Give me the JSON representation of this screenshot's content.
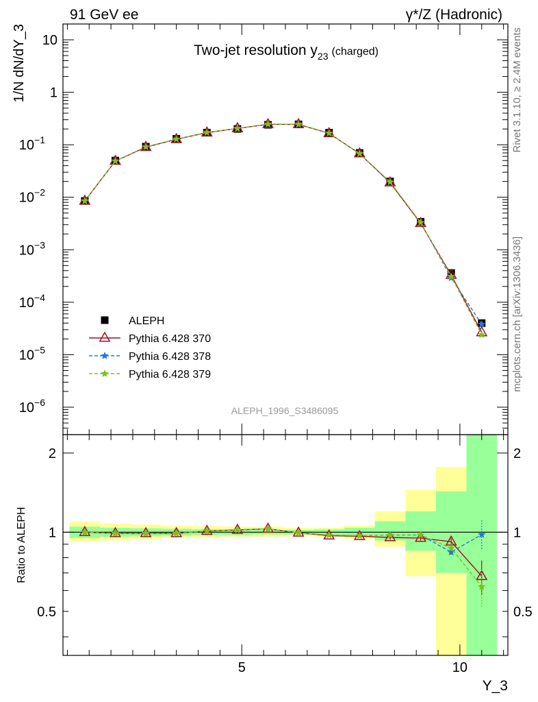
{
  "header": {
    "left": "91 GeV ee",
    "right": "γ*/Z (Hadronic)"
  },
  "side_labels": {
    "rivet": "Rivet 3.1.10, ≥ 2.4M events",
    "mcplots": "mcplots.cern.ch [arXiv:1306.3436]"
  },
  "colors": {
    "aleph": "#000000",
    "p370": "#a50f1e",
    "p378": "#1f77e0",
    "p379": "#7fbf1f",
    "band_inner": "#99ff99",
    "band_outer": "#ffff99"
  },
  "chart_data": [
    {
      "type": "line",
      "title": "Two-jet resolution y",
      "title_sub": "23",
      "title_suffix": "(charged)",
      "ylabel": "1/N dN/dY_3",
      "y_scale": "log",
      "ylim": [
        3e-07,
        20
      ],
      "xlim": [
        0.9,
        11.1
      ],
      "y_ticks": [
        {
          "v": 10,
          "base": "10",
          "exp": ""
        },
        {
          "v": 1,
          "base": "1",
          "exp": ""
        },
        {
          "v": 0.1,
          "base": "10",
          "exp": "−1"
        },
        {
          "v": 0.01,
          "base": "10",
          "exp": "−2"
        },
        {
          "v": 0.001,
          "base": "10",
          "exp": "−3"
        },
        {
          "v": 0.0001,
          "base": "10",
          "exp": "−4"
        },
        {
          "v": 1e-05,
          "base": "10",
          "exp": "−5"
        },
        {
          "v": 1e-06,
          "base": "10",
          "exp": "−6"
        }
      ],
      "watermark": "ALEPH_1996_S3486095",
      "legend_position": "bottom-left",
      "x": [
        1.4,
        2.1,
        2.8,
        3.5,
        4.2,
        4.9,
        5.6,
        6.3,
        7.0,
        7.7,
        8.4,
        9.1,
        9.8,
        10.5
      ],
      "series": [
        {
          "name": "ALEPH",
          "key": "aleph",
          "values": [
            0.0085,
            0.05,
            0.092,
            0.13,
            0.17,
            0.2,
            0.24,
            0.245,
            0.17,
            0.07,
            0.02,
            0.0034,
            0.00036,
            4e-05
          ]
        },
        {
          "name": "Pythia 6.428 370",
          "key": "p370",
          "values": [
            0.0085,
            0.049,
            0.09,
            0.127,
            0.17,
            0.205,
            0.245,
            0.245,
            0.165,
            0.068,
            0.019,
            0.0032,
            0.00033,
            2.65e-05
          ]
        },
        {
          "name": "Pythia 6.428 378",
          "key": "p378",
          "values": [
            0.0085,
            0.049,
            0.091,
            0.128,
            0.171,
            0.205,
            0.247,
            0.246,
            0.166,
            0.068,
            0.0195,
            0.0033,
            0.00029,
            3.8e-05
          ]
        },
        {
          "name": "Pythia 6.428 379",
          "key": "p379",
          "values": [
            0.0085,
            0.049,
            0.091,
            0.128,
            0.171,
            0.205,
            0.247,
            0.246,
            0.166,
            0.068,
            0.0195,
            0.0033,
            0.00031,
            2.4e-05
          ]
        }
      ]
    },
    {
      "type": "line",
      "ylabel": "Ratio to ALEPH",
      "xlabel": "Y_3",
      "ylim": [
        0.34,
        2.35
      ],
      "xlim": [
        0.9,
        11.1
      ],
      "y_ticks": [
        2,
        1,
        0.5
      ],
      "x_ticks": [
        5,
        10
      ],
      "bin_edges": [
        1.05,
        1.75,
        2.45,
        3.15,
        3.85,
        4.55,
        5.25,
        5.95,
        6.65,
        7.35,
        8.05,
        8.75,
        9.45,
        10.15,
        10.85
      ],
      "band_inner": [
        [
          0.95,
          1.05
        ],
        [
          0.96,
          1.04
        ],
        [
          0.965,
          1.035
        ],
        [
          0.97,
          1.03
        ],
        [
          0.975,
          1.025
        ],
        [
          0.975,
          1.025
        ],
        [
          0.98,
          1.02
        ],
        [
          0.98,
          1.02
        ],
        [
          0.975,
          1.025
        ],
        [
          0.96,
          1.04
        ],
        [
          0.93,
          1.1
        ],
        [
          0.85,
          1.2
        ],
        [
          0.7,
          1.43
        ],
        [
          0.3,
          3.0
        ]
      ],
      "band_outer": [
        [
          0.92,
          1.1
        ],
        [
          0.93,
          1.08
        ],
        [
          0.94,
          1.07
        ],
        [
          0.95,
          1.06
        ],
        [
          0.955,
          1.055
        ],
        [
          0.96,
          1.05
        ],
        [
          0.96,
          1.05
        ],
        [
          0.965,
          1.04
        ],
        [
          0.96,
          1.04
        ],
        [
          0.94,
          1.06
        ],
        [
          0.88,
          1.2
        ],
        [
          0.68,
          1.45
        ],
        [
          0.3,
          1.77
        ],
        [
          0.3,
          3.0
        ]
      ],
      "x": [
        1.4,
        2.1,
        2.8,
        3.5,
        4.2,
        4.9,
        5.6,
        6.3,
        7.0,
        7.7,
        8.4,
        9.1,
        9.8,
        10.5
      ],
      "series": [
        {
          "name": "Pythia 6.428 370",
          "key": "p370",
          "values": [
            1.0,
            0.99,
            0.99,
            0.99,
            1.01,
            1.02,
            1.03,
            0.995,
            0.97,
            0.965,
            0.955,
            0.95,
            0.92,
            0.68
          ],
          "err": [
            0,
            0,
            0,
            0,
            0,
            0,
            0,
            0,
            0,
            0,
            0.02,
            0.02,
            0.03,
            0.1
          ]
        },
        {
          "name": "Pythia 6.428 378",
          "key": "p378",
          "values": [
            1.0,
            0.99,
            0.99,
            0.99,
            1.01,
            1.02,
            1.03,
            0.995,
            0.975,
            0.97,
            0.975,
            0.975,
            0.84,
            0.98
          ],
          "err": [
            0,
            0,
            0,
            0,
            0,
            0,
            0,
            0,
            0,
            0,
            0.02,
            0.02,
            0.03,
            0.13
          ]
        },
        {
          "name": "Pythia 6.428 379",
          "key": "p379",
          "values": [
            1.0,
            0.99,
            0.99,
            0.99,
            1.01,
            1.02,
            1.03,
            0.995,
            0.975,
            0.97,
            0.975,
            0.975,
            0.87,
            0.62
          ],
          "err": [
            0,
            0,
            0,
            0,
            0,
            0,
            0,
            0,
            0,
            0,
            0.02,
            0.02,
            0.03,
            0.1
          ]
        }
      ]
    }
  ]
}
